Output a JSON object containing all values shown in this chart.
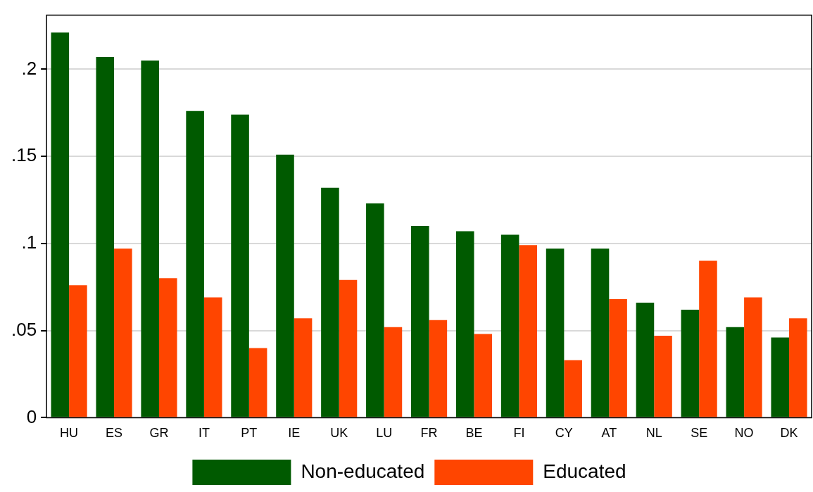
{
  "chart_data": {
    "type": "bar",
    "categories": [
      "HU",
      "ES",
      "GR",
      "IT",
      "PT",
      "IE",
      "UK",
      "LU",
      "FR",
      "BE",
      "FI",
      "CY",
      "AT",
      "NL",
      "SE",
      "NO",
      "DK"
    ],
    "series": [
      {
        "name": "Non-educated",
        "color": "#005a00",
        "values": [
          0.221,
          0.207,
          0.205,
          0.176,
          0.174,
          0.151,
          0.132,
          0.123,
          0.11,
          0.107,
          0.105,
          0.097,
          0.097,
          0.066,
          0.062,
          0.052,
          0.046
        ]
      },
      {
        "name": "Educated",
        "color": "#ff4500",
        "values": [
          0.076,
          0.097,
          0.08,
          0.069,
          0.04,
          0.057,
          0.079,
          0.052,
          0.056,
          0.048,
          0.099,
          0.033,
          0.068,
          0.047,
          0.09,
          0.069,
          0.057
        ]
      }
    ],
    "ylim": [
      0,
      0.231
    ],
    "yticks": [
      0,
      {
        "value": 0.05,
        "label": ".05"
      },
      {
        "value": 0.1,
        "label": ".1"
      },
      {
        "value": 0.15,
        "label": ".15"
      },
      {
        "value": 0.2,
        "label": ".2"
      }
    ],
    "grid": "y",
    "legend": "bottom"
  }
}
